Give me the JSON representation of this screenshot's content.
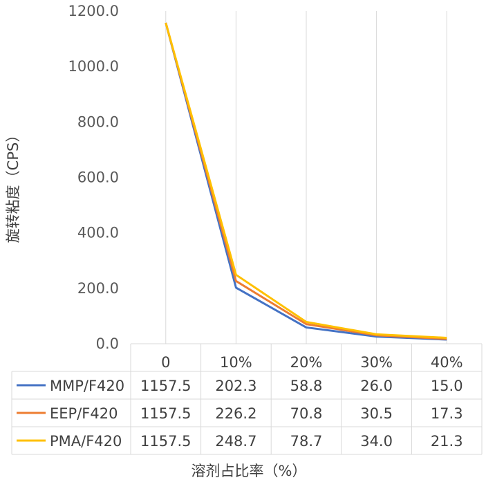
{
  "chart_data": {
    "type": "line",
    "title": "",
    "xlabel": "溶剂占比率（%）",
    "ylabel": "旋转粘度（CPS）",
    "ylim": [
      0,
      1200
    ],
    "yticks": [
      "0.0",
      "200.0",
      "400.0",
      "600.0",
      "800.0",
      "1000.0",
      "1200.0"
    ],
    "categories": [
      "0",
      "10%",
      "20%",
      "30%",
      "40%"
    ],
    "grid": true,
    "legend": "data-table",
    "series": [
      {
        "name": "MMP/F420",
        "color": "#4472C4",
        "values": [
          1157.5,
          202.3,
          58.8,
          26.0,
          15.0
        ],
        "labels": [
          "1157.5",
          "202.3",
          "58.8",
          "26.0",
          "15.0"
        ]
      },
      {
        "name": "EEP/F420",
        "color": "#ED7D31",
        "values": [
          1157.5,
          226.2,
          70.8,
          30.5,
          17.3
        ],
        "labels": [
          "1157.5",
          "226.2",
          "70.8",
          "30.5",
          "17.3"
        ]
      },
      {
        "name": "PMA/F420",
        "color": "#FFC000",
        "values": [
          1157.5,
          248.7,
          78.7,
          34.0,
          21.3
        ],
        "labels": [
          "1157.5",
          "248.7",
          "78.7",
          "34.0",
          "21.3"
        ]
      }
    ]
  }
}
